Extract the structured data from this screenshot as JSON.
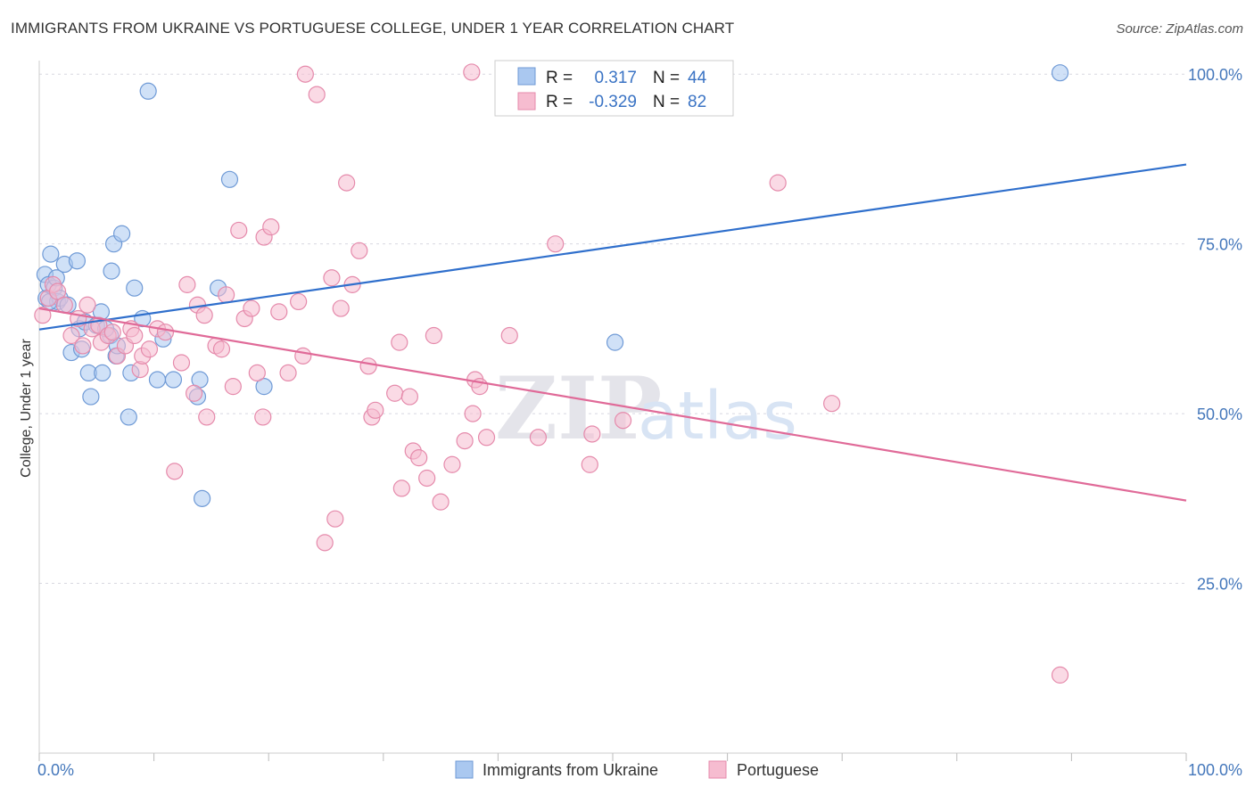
{
  "title": "IMMIGRANTS FROM UKRAINE VS PORTUGUESE COLLEGE, UNDER 1 YEAR CORRELATION CHART",
  "source": "Source: ZipAtlas.com",
  "watermark": {
    "zip": "ZIP",
    "atlas": "atlas"
  },
  "colors": {
    "ukraine_fill": "#aac8f0",
    "ukraine_stroke": "#6f9ad6",
    "ukraine_line": "#2f6fcc",
    "portuguese_fill": "#f6bcd0",
    "portuguese_stroke": "#e58aab",
    "portuguese_line": "#e06a98",
    "grid": "#d8d8e0",
    "tick_text": "#4477bb"
  },
  "legend": {
    "rows": [
      {
        "r_label": "R =",
        "r_value": "0.317",
        "n_label": "N =",
        "n_value": "44"
      },
      {
        "r_label": "R =",
        "r_value": "-0.329",
        "n_label": "N =",
        "n_value": "82"
      }
    ]
  },
  "chart_data": {
    "type": "scatter",
    "title": "IMMIGRANTS FROM UKRAINE VS PORTUGUESE COLLEGE, UNDER 1 YEAR CORRELATION CHART",
    "xlabel": "",
    "ylabel": "College, Under 1 year",
    "xlim": [
      0,
      100
    ],
    "ylim": [
      0,
      102
    ],
    "x_tick_labels": [
      "0.0%",
      "100.0%"
    ],
    "y_ticks": [
      25,
      50,
      75,
      100
    ],
    "y_tick_labels": [
      "25.0%",
      "50.0%",
      "75.0%",
      "100.0%"
    ],
    "grid": true,
    "legend_position": "top-center",
    "series": [
      {
        "name": "Immigrants from Ukraine",
        "r": 0.317,
        "n": 44,
        "trend": [
          [
            0,
            62.4
          ],
          [
            100,
            86.7
          ]
        ],
        "points": [
          [
            0.5,
            70.5
          ],
          [
            0.6,
            67
          ],
          [
            0.8,
            69
          ],
          [
            1.0,
            73.5
          ],
          [
            1.3,
            68.5
          ],
          [
            1.5,
            70
          ],
          [
            1.6,
            66.5
          ],
          [
            1.8,
            67
          ],
          [
            2.2,
            72
          ],
          [
            2.5,
            66
          ],
          [
            2.8,
            59
          ],
          [
            3.3,
            72.5
          ],
          [
            3.5,
            62.5
          ],
          [
            3.7,
            59.5
          ],
          [
            4.0,
            63.5
          ],
          [
            4.3,
            56
          ],
          [
            4.5,
            52.5
          ],
          [
            5.0,
            63
          ],
          [
            5.4,
            65
          ],
          [
            5.5,
            56
          ],
          [
            6.3,
            71
          ],
          [
            6.2,
            61.5
          ],
          [
            6.5,
            75
          ],
          [
            6.7,
            58.5
          ],
          [
            6.8,
            60
          ],
          [
            7.2,
            76.5
          ],
          [
            7.8,
            49.5
          ],
          [
            8.0,
            56
          ],
          [
            8.3,
            68.5
          ],
          [
            9.0,
            64
          ],
          [
            9.5,
            97.5
          ],
          [
            10.3,
            55
          ],
          [
            10.8,
            61
          ],
          [
            11.7,
            55
          ],
          [
            13.8,
            52.5
          ],
          [
            14.0,
            55
          ],
          [
            14.2,
            37.5
          ],
          [
            15.6,
            68.5
          ],
          [
            16.6,
            84.5
          ],
          [
            19.6,
            54
          ],
          [
            50.2,
            60.5
          ],
          [
            89.0,
            100.2
          ],
          [
            0.9,
            66.5
          ],
          [
            5.8,
            62.5
          ]
        ]
      },
      {
        "name": "Portuguese",
        "r": -0.329,
        "n": 82,
        "trend": [
          [
            0,
            65.5
          ],
          [
            100,
            37.2
          ]
        ],
        "points": [
          [
            0.3,
            64.5
          ],
          [
            0.8,
            67
          ],
          [
            1.2,
            69
          ],
          [
            1.6,
            68
          ],
          [
            2.2,
            66
          ],
          [
            2.8,
            61.5
          ],
          [
            3.4,
            64
          ],
          [
            3.8,
            60
          ],
          [
            4.2,
            66
          ],
          [
            4.6,
            62.5
          ],
          [
            5.2,
            63
          ],
          [
            5.4,
            60.5
          ],
          [
            6.0,
            61.5
          ],
          [
            6.4,
            62
          ],
          [
            6.8,
            58.5
          ],
          [
            7.5,
            60
          ],
          [
            8.0,
            62.5
          ],
          [
            8.3,
            61.5
          ],
          [
            8.8,
            56.5
          ],
          [
            9.0,
            58.5
          ],
          [
            9.6,
            59.5
          ],
          [
            10.3,
            62.5
          ],
          [
            11.0,
            62
          ],
          [
            11.8,
            41.5
          ],
          [
            12.4,
            57.5
          ],
          [
            12.9,
            69
          ],
          [
            13.5,
            53
          ],
          [
            13.8,
            66
          ],
          [
            14.4,
            64.5
          ],
          [
            14.6,
            49.5
          ],
          [
            15.4,
            60
          ],
          [
            15.9,
            59.5
          ],
          [
            16.3,
            67.5
          ],
          [
            16.9,
            54
          ],
          [
            17.4,
            77
          ],
          [
            17.9,
            64
          ],
          [
            18.5,
            65.5
          ],
          [
            19.0,
            56
          ],
          [
            19.5,
            49.5
          ],
          [
            19.6,
            76
          ],
          [
            20.2,
            77.5
          ],
          [
            20.9,
            65
          ],
          [
            21.7,
            56
          ],
          [
            22.6,
            66.5
          ],
          [
            23.0,
            58.5
          ],
          [
            23.2,
            100
          ],
          [
            24.2,
            97
          ],
          [
            24.9,
            31
          ],
          [
            25.5,
            70
          ],
          [
            25.8,
            34.5
          ],
          [
            26.3,
            65.5
          ],
          [
            26.8,
            84
          ],
          [
            27.3,
            69
          ],
          [
            27.9,
            74
          ],
          [
            28.7,
            57
          ],
          [
            29.0,
            49.5
          ],
          [
            29.3,
            50.5
          ],
          [
            31.0,
            53
          ],
          [
            31.4,
            60.5
          ],
          [
            31.6,
            39
          ],
          [
            32.3,
            52.5
          ],
          [
            32.6,
            44.5
          ],
          [
            33.1,
            43.5
          ],
          [
            33.8,
            40.5
          ],
          [
            34.4,
            61.5
          ],
          [
            35.0,
            37
          ],
          [
            36.0,
            42.5
          ],
          [
            37.1,
            46
          ],
          [
            37.8,
            50
          ],
          [
            38.0,
            55
          ],
          [
            38.4,
            54
          ],
          [
            39.0,
            46.5
          ],
          [
            37.7,
            100.3
          ],
          [
            41.0,
            61.5
          ],
          [
            43.5,
            46.5
          ],
          [
            45.0,
            75
          ],
          [
            48.0,
            42.5
          ],
          [
            48.2,
            47
          ],
          [
            50.9,
            49
          ],
          [
            64.4,
            84
          ],
          [
            69.1,
            51.5
          ],
          [
            89.0,
            11.5
          ]
        ]
      }
    ]
  }
}
